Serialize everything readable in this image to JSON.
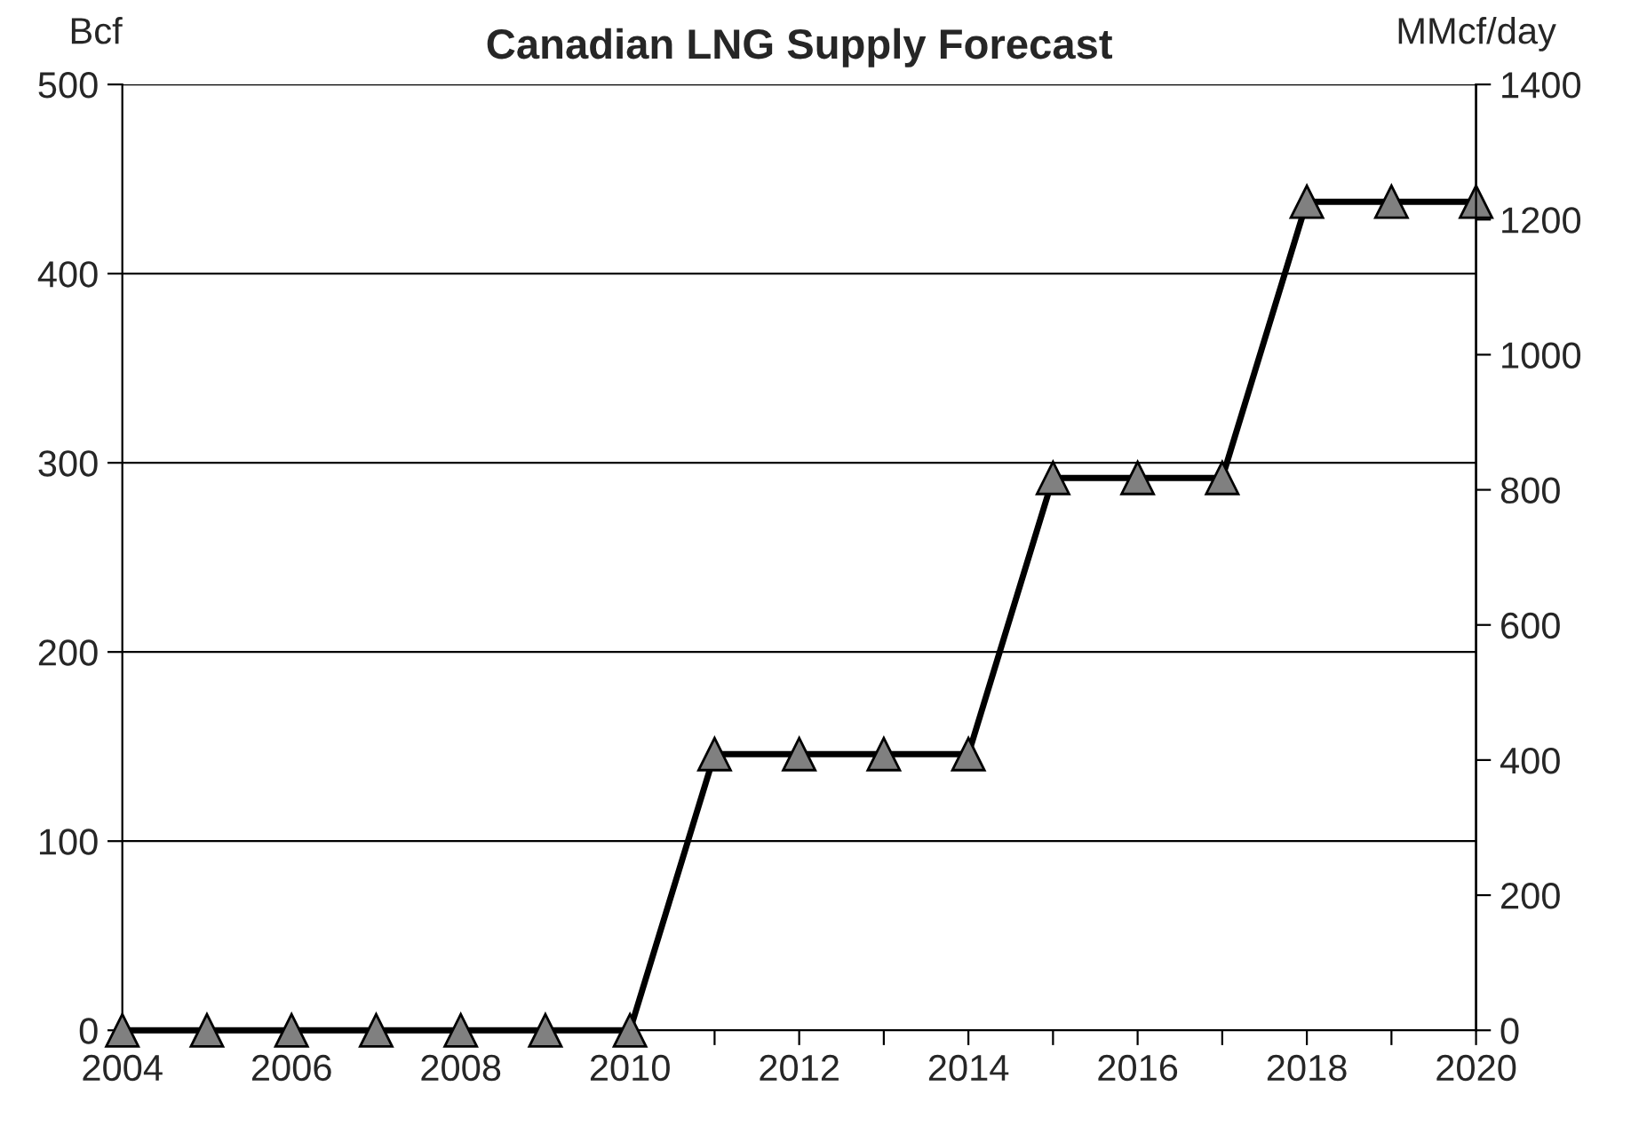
{
  "chart_data": {
    "type": "line",
    "title": "Canadian LNG Supply Forecast",
    "ylabel": "Bcf",
    "y2label": "MMcf/day",
    "x": [
      2004,
      2005,
      2006,
      2007,
      2008,
      2009,
      2010,
      2011,
      2012,
      2013,
      2014,
      2015,
      2016,
      2017,
      2018,
      2019,
      2020
    ],
    "series": [
      {
        "color": "#000000",
        "values": [
          0,
          0,
          0,
          0,
          0,
          0,
          0,
          146,
          146,
          146,
          146,
          292,
          292,
          292,
          438,
          438,
          438
        ]
      }
    ],
    "marker": "triangle",
    "line_style": "solid",
    "grid": "y",
    "legend": false,
    "xlim": [
      2004,
      2020
    ],
    "xticks": [
      2004,
      {
        "value": 2005,
        "label": null
      },
      2006,
      {
        "value": 2007,
        "label": null
      },
      2008,
      {
        "value": 2009,
        "label": null
      },
      2010,
      {
        "value": 2011,
        "label": null
      },
      2012,
      {
        "value": 2013,
        "label": null
      },
      2014,
      {
        "value": 2015,
        "label": null
      },
      2016,
      {
        "value": 2017,
        "label": null
      },
      2018,
      {
        "value": 2019,
        "label": null
      },
      2020
    ],
    "ylim": [
      0,
      500
    ],
    "yticks": [
      0,
      100,
      200,
      300,
      400,
      500
    ],
    "y2lim": [
      0,
      1400
    ],
    "y2ticks": [
      0,
      200,
      400,
      600,
      800,
      1000,
      1200,
      1400
    ]
  }
}
